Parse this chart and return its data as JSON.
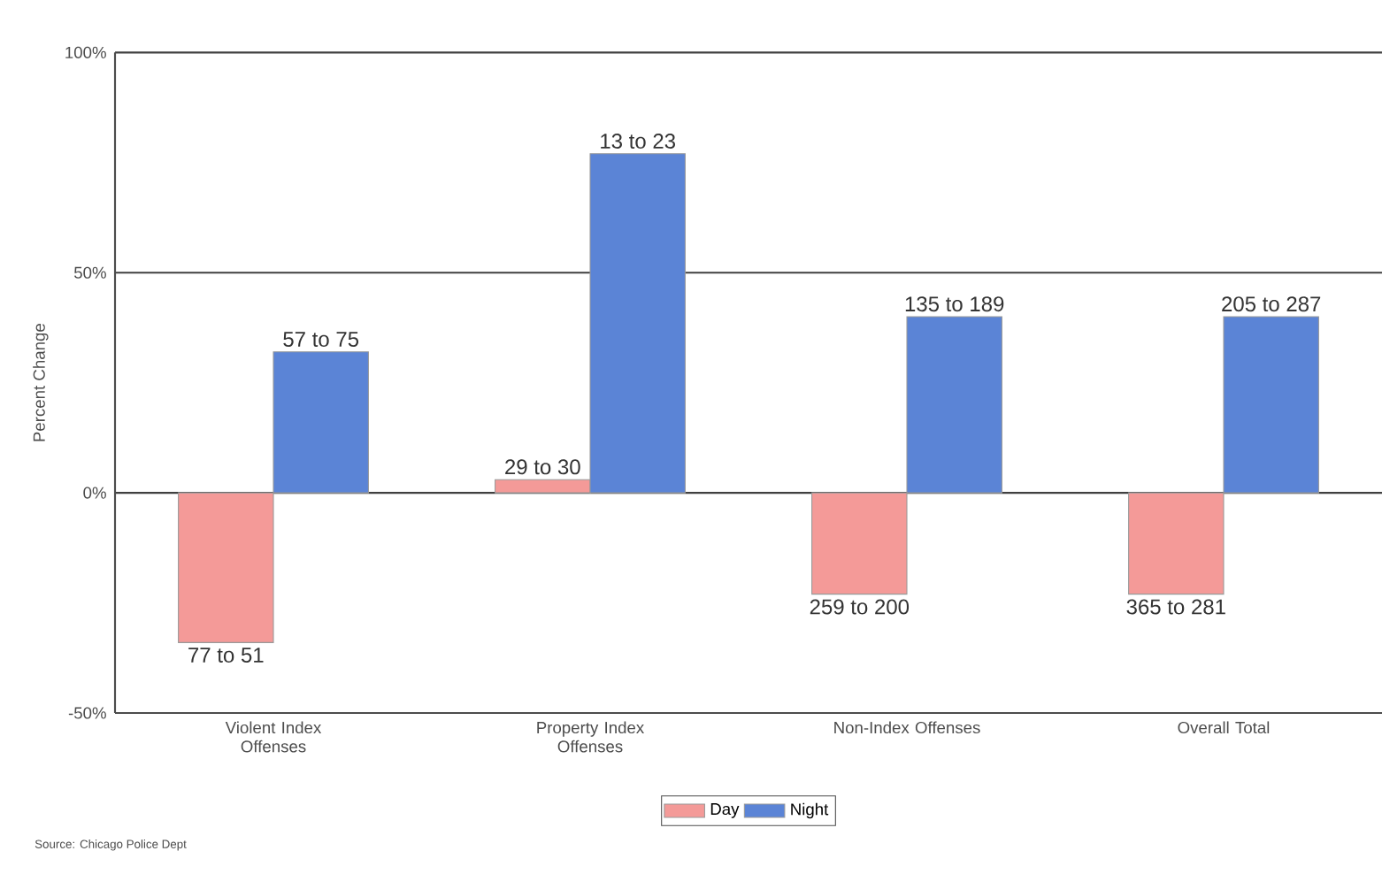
{
  "chart_data": {
    "type": "bar",
    "ylabel": "Percent Change",
    "categories": [
      "Violent Index Offenses",
      "Property Index Offenses",
      "Non-Index Offenses",
      "Overall Total"
    ],
    "series": [
      {
        "name": "Day",
        "color": "#f49a98",
        "values": [
          -34,
          3,
          -23,
          -23
        ]
      },
      {
        "name": "Night",
        "color": "#5b84d6",
        "values": [
          32,
          77,
          40,
          40
        ]
      }
    ],
    "ylim": [
      -50,
      100
    ],
    "yticks": [
      {
        "value": -50,
        "label": "-50%"
      },
      {
        "value": 0,
        "label": "0%"
      },
      {
        "value": 50,
        "label": "50%"
      },
      {
        "value": 100,
        "label": "100%"
      }
    ],
    "grid": "y",
    "legend": "bottom",
    "annotations": [
      {
        "text": "77 to 51",
        "x": "Violent Index Offenses",
        "y": -34
      },
      {
        "text": "57 to 75",
        "x": "Violent Index Offenses",
        "y": 32
      },
      {
        "text": "29 to 30",
        "x": "Property Index Offenses",
        "y": 3
      },
      {
        "text": "13 to 23",
        "x": "Property Index Offenses",
        "y": 77
      },
      {
        "text": "259 to 200",
        "x": "Non-Index Offenses",
        "y": -23
      },
      {
        "text": "135 to 189",
        "x": "Non-Index Offenses",
        "y": 40
      },
      {
        "text": "365 to 281",
        "x": "Overall Total",
        "y": -23
      },
      {
        "text": "205 to 287",
        "x": "Overall Total",
        "y": 40
      },
      "Source: Chicago Police Dept"
    ]
  }
}
